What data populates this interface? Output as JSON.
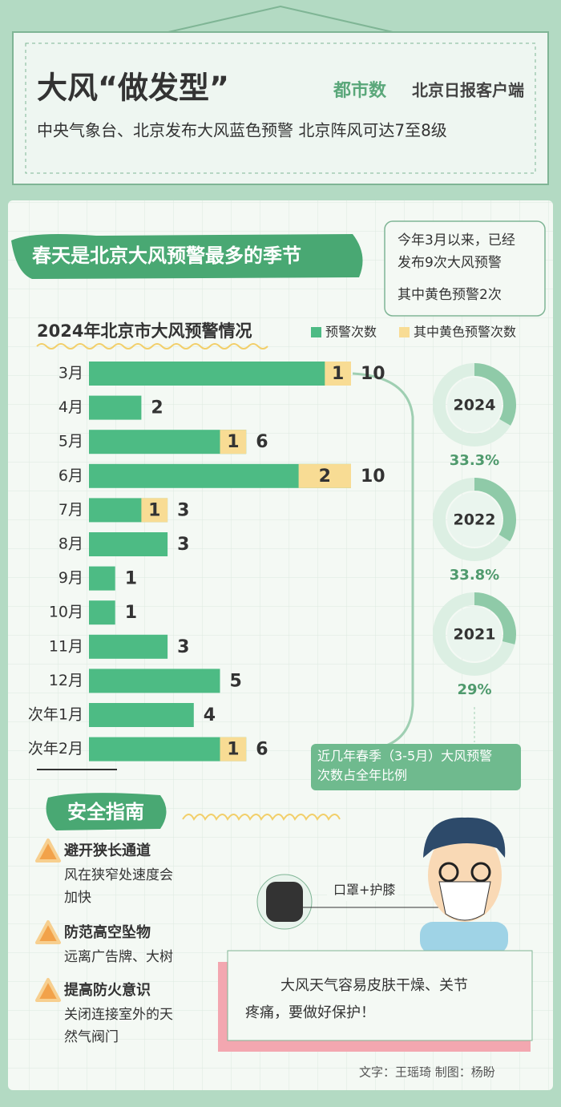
{
  "header": {
    "title": "大风“做发型”",
    "brand": [
      "都市数",
      "北京日报客户端"
    ],
    "subtitle": "中央气象台、北京发布大风蓝色预警 北京阵风可达7至8级"
  },
  "banner": "春天是北京大风预警最多的季节",
  "callout": [
    "今年3月以来，已经",
    "发布9次大风预警",
    "其中黄色预警2次"
  ],
  "chart_data": [
    {
      "type": "bar",
      "title": "2024年北京市大风预警情况",
      "categories": [
        "3月",
        "4月",
        "5月",
        "6月",
        "7月",
        "8月",
        "9月",
        "10月",
        "11月",
        "12月",
        "次年1月",
        "次年2月"
      ],
      "series": [
        {
          "name": "预警次数",
          "color": "#4dbb84",
          "values": [
            10,
            2,
            6,
            10,
            3,
            3,
            1,
            1,
            3,
            5,
            4,
            6
          ]
        },
        {
          "name": "其中黄色预警次数",
          "color": "#f8dc94",
          "values": [
            1,
            null,
            1,
            2,
            1,
            null,
            null,
            null,
            null,
            null,
            null,
            1
          ]
        }
      ]
    },
    {
      "type": "donut",
      "categories": [
        "2024",
        "2022",
        "2021"
      ],
      "values": [
        33.3,
        33.8,
        29
      ],
      "value_labels": [
        "33.3%",
        "33.8%",
        "29%"
      ],
      "color": "#8fcaa8",
      "caption": [
        "近几年春季（3-5月）大风预警",
        "次数占全年比例"
      ]
    }
  ],
  "guide": {
    "title": "安全指南",
    "items": [
      {
        "title": "避开狭长通道",
        "desc": [
          "风在狭窄处速度会",
          "加快"
        ]
      },
      {
        "title": "防范高空坠物",
        "desc": [
          "远离广告牌、大树"
        ]
      },
      {
        "title": "提高防火意识",
        "desc": [
          "关闭连接室外的天",
          "然气阀门"
        ]
      }
    ]
  },
  "illustration_label": "口罩+护膝",
  "note": [
    "大风天气容易皮肤干燥、关节",
    "疼痛，要做好保护！"
  ],
  "credits": "文字：王瑶琦  制图：杨盼"
}
